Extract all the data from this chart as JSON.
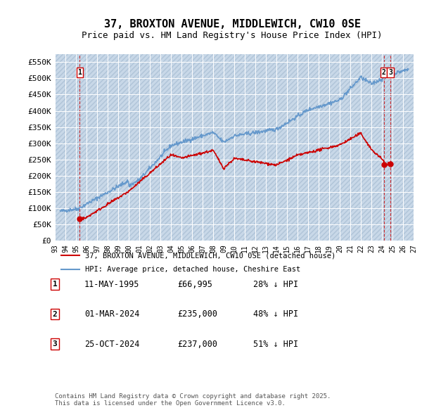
{
  "title": "37, BROXTON AVENUE, MIDDLEWICH, CW10 0SE",
  "subtitle": "Price paid vs. HM Land Registry's House Price Index (HPI)",
  "background_color": "#dce9f5",
  "plot_bg_color": "#dce9f5",
  "hatch_color": "#c0d4e8",
  "grid_color": "#ffffff",
  "red_line_color": "#cc0000",
  "blue_line_color": "#6699cc",
  "ylim": [
    0,
    575000
  ],
  "xlim_start": 1993,
  "xlim_end": 2027,
  "yticks": [
    0,
    50000,
    100000,
    150000,
    200000,
    250000,
    300000,
    350000,
    400000,
    450000,
    500000,
    550000
  ],
  "ytick_labels": [
    "£0",
    "£50K",
    "£100K",
    "£150K",
    "£200K",
    "£250K",
    "£300K",
    "£350K",
    "£400K",
    "£450K",
    "£500K",
    "£550K"
  ],
  "sale_points": [
    {
      "year": 1995.36,
      "price": 66995,
      "label": "1"
    },
    {
      "year": 2024.17,
      "price": 235000,
      "label": "2"
    },
    {
      "year": 2024.82,
      "price": 237000,
      "label": "3"
    }
  ],
  "annotations": [
    {
      "num": "1",
      "date": "11-MAY-1995",
      "price": "£66,995",
      "pct": "28% ↓ HPI"
    },
    {
      "num": "2",
      "date": "01-MAR-2024",
      "price": "£235,000",
      "pct": "48% ↓ HPI"
    },
    {
      "num": "3",
      "date": "25-OCT-2024",
      "price": "£237,000",
      "pct": "51% ↓ HPI"
    }
  ],
  "legend_red": "37, BROXTON AVENUE, MIDDLEWICH, CW10 0SE (detached house)",
  "legend_blue": "HPI: Average price, detached house, Cheshire East",
  "footer": "Contains HM Land Registry data © Crown copyright and database right 2025.\nThis data is licensed under the Open Government Licence v3.0."
}
